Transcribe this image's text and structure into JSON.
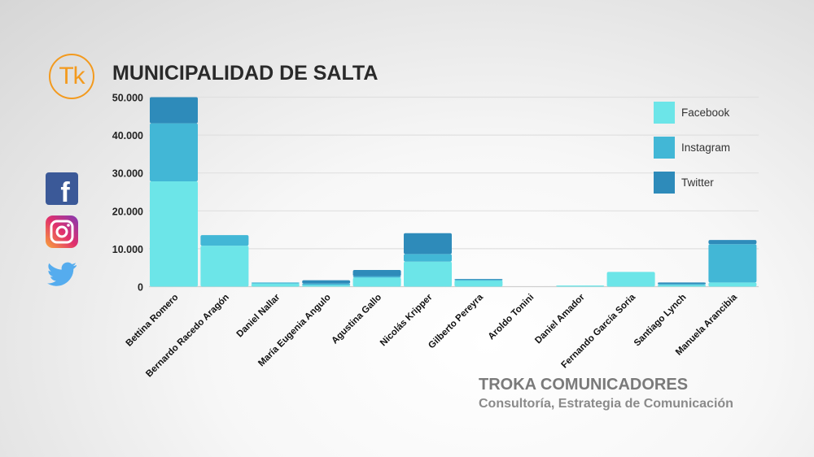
{
  "logo": "Tk",
  "title": "MUNICIPALIDAD DE SALTA",
  "social_icons": [
    "facebook-icon",
    "instagram-icon",
    "twitter-icon"
  ],
  "footer": {
    "company": "TROKA COMUNICADORES",
    "tagline": "Consultoría, Estrategia de Comunicación"
  },
  "chart_data": {
    "type": "bar",
    "stacked": true,
    "grid": true,
    "legend_position": "top-right",
    "ylim": [
      0,
      50000
    ],
    "yticks": [
      "0",
      "10.000",
      "20.000",
      "30.000",
      "40.000",
      "50.000"
    ],
    "categories": [
      "Bettina Romero",
      "Bernardo Racedo Aragón",
      "Daniel Nallar",
      "María Eugenia Angulo",
      "Agustina Gallo",
      "Nicolás Kripper",
      "Gilberto Pereyra",
      "Aroldo Tonini",
      "Daniel Amador",
      "Fernando García Soria",
      "Santiago Lynch",
      "Manuela Arancibia"
    ],
    "series": [
      {
        "name": "Facebook",
        "color": "#6ce5e8",
        "values": [
          27800,
          10800,
          800,
          400,
          2400,
          6600,
          1700,
          0,
          300,
          3900,
          400,
          1100
        ]
      },
      {
        "name": "Instagram",
        "color": "#42b7d6",
        "values": [
          15300,
          2800,
          300,
          400,
          300,
          2000,
          100,
          0,
          0,
          0,
          300,
          10100
        ]
      },
      {
        "name": "Twitter",
        "color": "#2e8bba",
        "values": [
          6900,
          0,
          0,
          900,
          1700,
          5500,
          200,
          0,
          0,
          0,
          400,
          1100
        ]
      }
    ]
  }
}
